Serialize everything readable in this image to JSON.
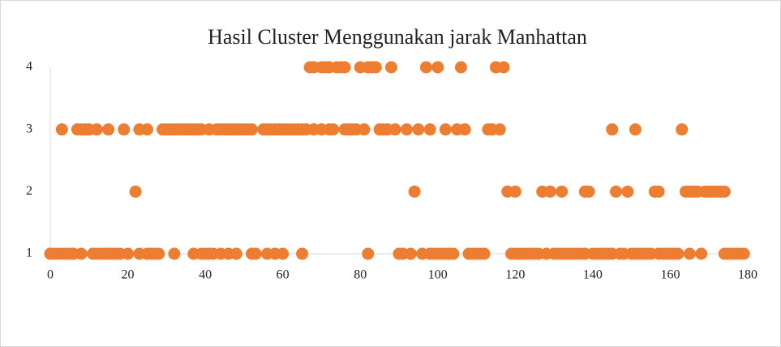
{
  "chart_data": {
    "type": "scatter",
    "title": "Hasil Cluster Menggunakan jarak Manhattan",
    "xlim": [
      0,
      180
    ],
    "xticks": [
      0,
      20,
      40,
      60,
      80,
      100,
      120,
      140,
      160,
      180
    ],
    "ylim": [
      1,
      4
    ],
    "yticks": [
      1,
      2,
      3,
      4
    ],
    "grid": false,
    "series": [
      {
        "color": "#ed7d31",
        "x": [
          67,
          68,
          70,
          71,
          72,
          74,
          75,
          76,
          80,
          82,
          83,
          84,
          88,
          97,
          100,
          106,
          115,
          117
        ],
        "values": [
          4,
          4,
          4,
          4,
          4,
          4,
          4,
          4,
          4,
          4,
          4,
          4,
          4,
          4,
          4,
          4,
          4,
          4
        ]
      },
      {
        "color": "#ed7d31",
        "x": [
          3,
          7,
          8,
          9,
          10,
          12,
          15,
          19,
          23,
          25,
          29,
          30,
          31,
          32,
          33,
          34,
          35,
          36,
          37,
          38,
          39,
          41,
          43,
          44,
          45,
          46,
          47,
          48,
          49,
          50,
          51,
          52,
          55,
          56,
          57,
          58,
          59,
          60,
          61,
          62,
          63,
          64,
          65,
          66,
          68,
          70,
          72,
          73,
          76,
          77,
          78,
          79,
          81,
          85,
          86,
          87,
          89,
          92,
          95,
          98,
          102,
          105,
          107,
          113,
          114,
          116,
          145,
          151,
          163
        ],
        "values": [
          3,
          3,
          3,
          3,
          3,
          3,
          3,
          3,
          3,
          3,
          3,
          3,
          3,
          3,
          3,
          3,
          3,
          3,
          3,
          3,
          3,
          3,
          3,
          3,
          3,
          3,
          3,
          3,
          3,
          3,
          3,
          3,
          3,
          3,
          3,
          3,
          3,
          3,
          3,
          3,
          3,
          3,
          3,
          3,
          3,
          3,
          3,
          3,
          3,
          3,
          3,
          3,
          3,
          3,
          3,
          3,
          3,
          3,
          3,
          3,
          3,
          3,
          3,
          3,
          3,
          3,
          3,
          3,
          3
        ]
      },
      {
        "color": "#ed7d31",
        "x": [
          22,
          94,
          118,
          120,
          127,
          129,
          132,
          138,
          139,
          146,
          149,
          156,
          157,
          164,
          165,
          166,
          167,
          169,
          170,
          171,
          172,
          173,
          174
        ],
        "values": [
          2,
          2,
          2,
          2,
          2,
          2,
          2,
          2,
          2,
          2,
          2,
          2,
          2,
          2,
          2,
          2,
          2,
          2,
          2,
          2,
          2,
          2,
          2
        ]
      },
      {
        "color": "#ed7d31",
        "x": [
          0,
          1,
          2,
          3,
          4,
          5,
          6,
          8,
          11,
          12,
          13,
          14,
          15,
          16,
          17,
          18,
          20,
          23,
          25,
          26,
          27,
          28,
          32,
          37,
          39,
          40,
          41,
          42,
          44,
          46,
          48,
          52,
          53,
          56,
          58,
          60,
          65,
          82,
          90,
          91,
          93,
          96,
          98,
          99,
          100,
          101,
          102,
          103,
          104,
          108,
          109,
          110,
          111,
          112,
          119,
          120,
          121,
          122,
          123,
          124,
          125,
          126,
          128,
          130,
          131,
          132,
          133,
          134,
          135,
          136,
          137,
          138,
          140,
          141,
          142,
          143,
          144,
          145,
          147,
          148,
          150,
          151,
          152,
          153,
          154,
          155,
          157,
          158,
          159,
          160,
          161,
          162,
          165,
          168,
          174,
          175,
          176,
          177,
          178,
          179
        ],
        "values": [
          1,
          1,
          1,
          1,
          1,
          1,
          1,
          1,
          1,
          1,
          1,
          1,
          1,
          1,
          1,
          1,
          1,
          1,
          1,
          1,
          1,
          1,
          1,
          1,
          1,
          1,
          1,
          1,
          1,
          1,
          1,
          1,
          1,
          1,
          1,
          1,
          1,
          1,
          1,
          1,
          1,
          1,
          1,
          1,
          1,
          1,
          1,
          1,
          1,
          1,
          1,
          1,
          1,
          1,
          1,
          1,
          1,
          1,
          1,
          1,
          1,
          1,
          1,
          1,
          1,
          1,
          1,
          1,
          1,
          1,
          1,
          1,
          1,
          1,
          1,
          1,
          1,
          1,
          1,
          1,
          1,
          1,
          1,
          1,
          1,
          1,
          1,
          1,
          1,
          1,
          1,
          1,
          1,
          1,
          1,
          1,
          1,
          1,
          1,
          1
        ]
      }
    ]
  }
}
